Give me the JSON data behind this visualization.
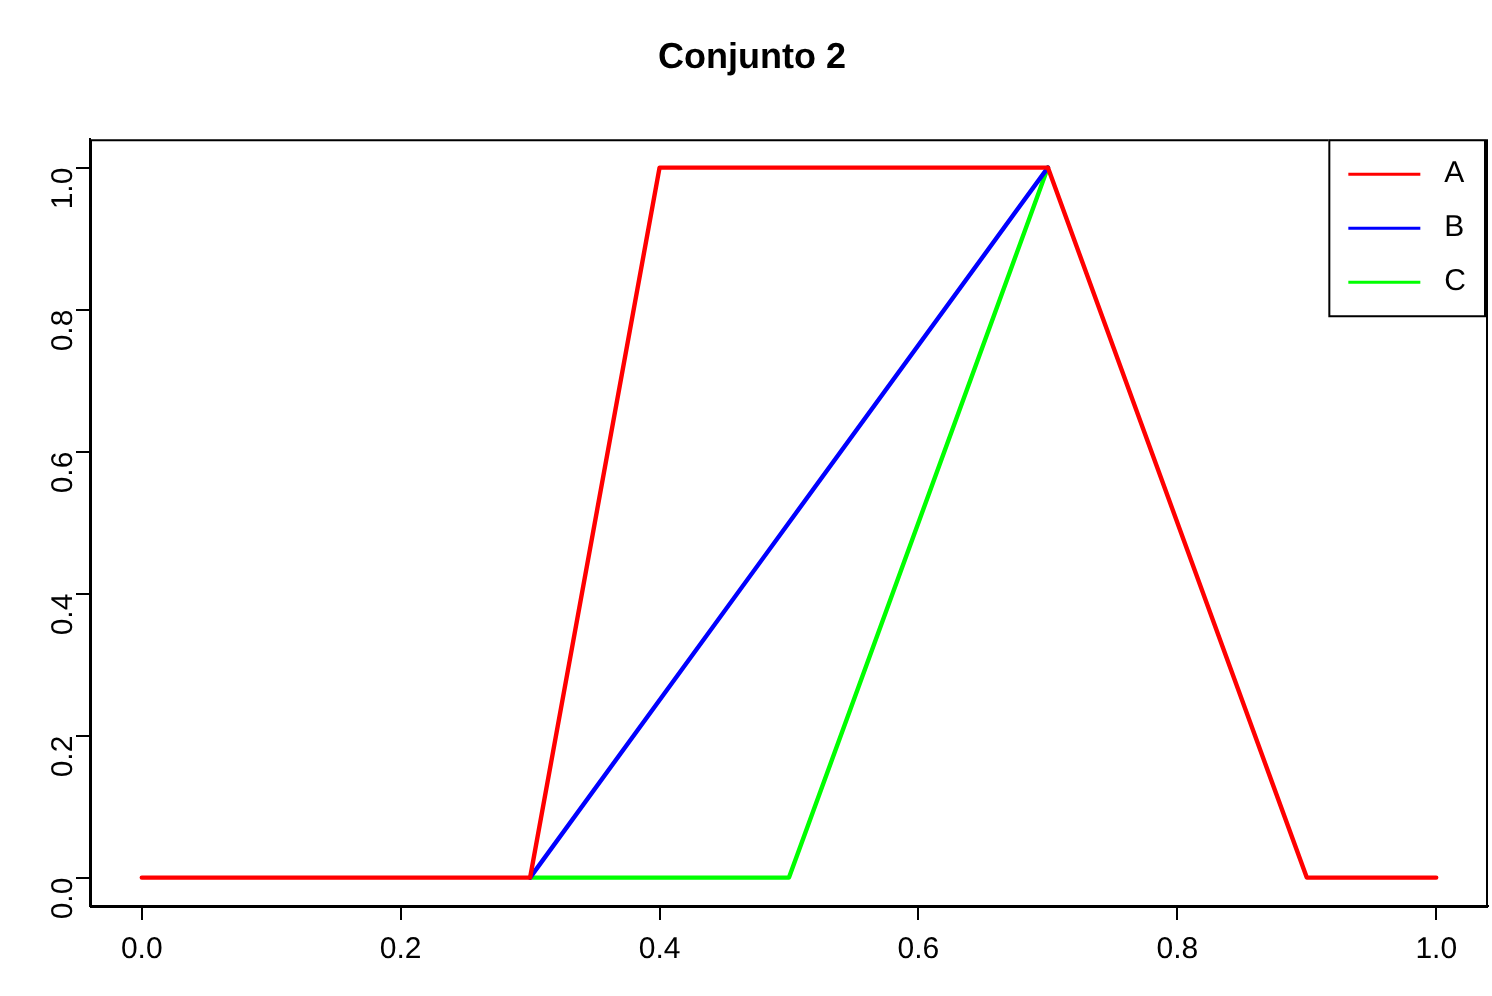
{
  "chart_data": {
    "type": "line",
    "title": "Conjunto 2",
    "series": [
      {
        "name": "A",
        "color": "#ff0000",
        "x": [
          0,
          0.3,
          0.4,
          0.7,
          0.9,
          1
        ],
        "values": [
          0,
          0,
          1,
          1,
          0,
          0
        ]
      },
      {
        "name": "B",
        "color": "#0000ff",
        "x": [
          0.3,
          0.7
        ],
        "values": [
          0,
          1
        ]
      },
      {
        "name": "C",
        "color": "#00ff00",
        "x": [
          0.3,
          0.5,
          0.7
        ],
        "values": [
          0,
          0,
          1
        ]
      }
    ],
    "xlim": [
      -0.04,
      1.04
    ],
    "ylim": [
      -0.04,
      1.04
    ],
    "xticks": [
      {
        "value": 0,
        "label": "0.0"
      },
      {
        "value": 0.2,
        "label": "0.2"
      },
      {
        "value": 0.4,
        "label": "0.4"
      },
      {
        "value": 0.6,
        "label": "0.6"
      },
      {
        "value": 0.8,
        "label": "0.8"
      },
      {
        "value": 1,
        "label": "1.0"
      }
    ],
    "yticks": [
      {
        "value": 0,
        "label": "0.0"
      },
      {
        "value": 0.2,
        "label": "0.2"
      },
      {
        "value": 0.4,
        "label": "0.4"
      },
      {
        "value": 0.6,
        "label": "0.6"
      },
      {
        "value": 0.8,
        "label": "0.8"
      },
      {
        "value": 1,
        "label": "1.0"
      }
    ],
    "grid": false,
    "legend": "top right",
    "marker": "none",
    "line_style": "solid"
  }
}
